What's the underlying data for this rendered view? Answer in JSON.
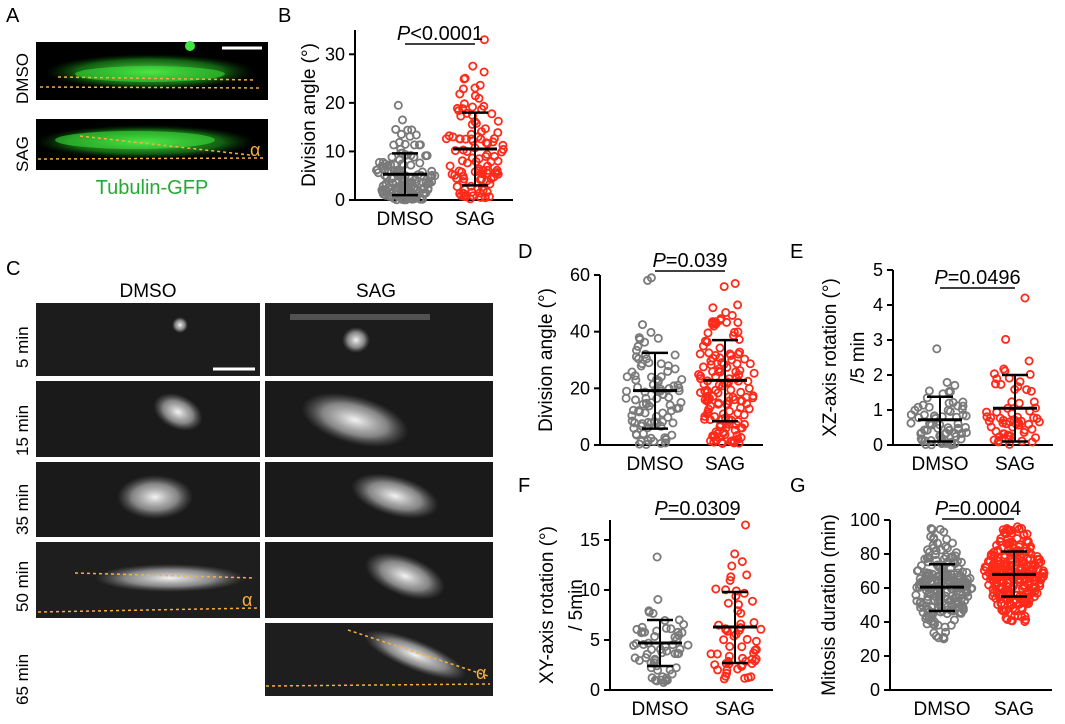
{
  "panel_letters": {
    "a": "A",
    "b": "B",
    "c": "C",
    "d": "D",
    "e": "E",
    "f": "F",
    "g": "G"
  },
  "colors": {
    "dmso": "#7a7a7a",
    "sag": "#ff2a1a",
    "micro_green": "#2fd12f",
    "dotted": "#f5b041",
    "tubulin_label": "#22aa33"
  },
  "panel_a": {
    "rows": [
      {
        "label": "DMSO",
        "has_alpha": false
      },
      {
        "label": "SAG",
        "has_alpha": true
      }
    ],
    "caption": "Tubulin-GFP",
    "alpha_symbol": "α"
  },
  "panel_c": {
    "col_labels": [
      "DMSO",
      "SAG"
    ],
    "row_labels": [
      "5 min",
      "15 min",
      "35 min",
      "50 min",
      "65 min"
    ],
    "alpha_symbol": "α"
  },
  "chart_data": [
    {
      "panel": "B",
      "type": "scatter",
      "ylabel": "Division angle (°)",
      "yticks": [
        "0",
        "10",
        "20",
        "30"
      ],
      "ylim": [
        0,
        35
      ],
      "categories": [
        "DMSO",
        "SAG"
      ],
      "pvalue_prefix": "P",
      "pvalue_rest": "<0.0001",
      "groups": [
        {
          "name": "DMSO",
          "mean": 5.3,
          "sd_low": 1.0,
          "sd_high": 9.6,
          "min": 0,
          "max": 19.5,
          "n": 140,
          "bias": 0.7
        },
        {
          "name": "SAG",
          "mean": 10.5,
          "sd_low": 3.0,
          "sd_high": 18.0,
          "min": 0,
          "max": 33,
          "n": 110,
          "bias": 0.3
        }
      ]
    },
    {
      "panel": "D",
      "type": "scatter",
      "ylabel": "Division angle (°)",
      "yticks": [
        "0",
        "20",
        "40",
        "60"
      ],
      "ylim": [
        0,
        60
      ],
      "categories": [
        "DMSO",
        "SAG"
      ],
      "pvalue_prefix": "P",
      "pvalue_rest": "=0.039",
      "groups": [
        {
          "name": "DMSO",
          "mean": 19.2,
          "sd_low": 5.8,
          "sd_high": 32.5,
          "min": 0,
          "max": 59,
          "n": 100,
          "bias": 0.4
        },
        {
          "name": "SAG",
          "mean": 22.8,
          "sd_low": 8.4,
          "sd_high": 37.0,
          "min": 0,
          "max": 57,
          "n": 150,
          "bias": 0.4
        }
      ]
    },
    {
      "panel": "E",
      "type": "scatter",
      "ylabel": "XZ-axis rotation (°)",
      "ylabel2": "/5 min",
      "yticks": [
        "0",
        "1",
        "2",
        "3",
        "4",
        "5"
      ],
      "ylim": [
        0,
        5
      ],
      "categories": [
        "DMSO",
        "SAG"
      ],
      "pvalue_prefix": "P",
      "pvalue_rest": "=0.0496",
      "groups": [
        {
          "name": "DMSO",
          "mean": 0.72,
          "sd_low": 0.1,
          "sd_high": 1.38,
          "min": 0,
          "max": 2.75,
          "n": 75,
          "bias": 0.8
        },
        {
          "name": "SAG",
          "mean": 1.05,
          "sd_low": 0.1,
          "sd_high": 2.0,
          "min": 0,
          "max": 4.2,
          "n": 65,
          "bias": 0.6
        }
      ]
    },
    {
      "panel": "F",
      "type": "scatter",
      "ylabel": "XY-axis rotation (°)",
      "ylabel2": "/ 5min",
      "yticks": [
        "0",
        "5",
        "10",
        "15"
      ],
      "ylim": [
        0,
        17
      ],
      "categories": [
        "DMSO",
        "SAG"
      ],
      "pvalue_prefix": "P",
      "pvalue_rest": "=0.0309",
      "groups": [
        {
          "name": "DMSO",
          "mean": 4.7,
          "sd_low": 2.4,
          "sd_high": 7.0,
          "min": 0.5,
          "max": 13.3,
          "n": 60,
          "bias": 0.5
        },
        {
          "name": "SAG",
          "mean": 6.3,
          "sd_low": 2.7,
          "sd_high": 9.8,
          "min": 0.5,
          "max": 16.5,
          "n": 60,
          "bias": 0.6
        }
      ]
    },
    {
      "panel": "G",
      "type": "scatter",
      "ylabel": "Mitosis duration (min)",
      "yticks": [
        "0",
        "20",
        "40",
        "60",
        "80",
        "100"
      ],
      "ylim": [
        0,
        100
      ],
      "categories": [
        "DMSO",
        "SAG"
      ],
      "pvalue_prefix": "P",
      "pvalue_rest": "=0.0004",
      "groups": [
        {
          "name": "DMSO",
          "mean": 60.5,
          "sd_low": 46.5,
          "sd_high": 74.0,
          "min": 30,
          "max": 95,
          "n": 220,
          "bias": 0
        },
        {
          "name": "SAG",
          "mean": 68.0,
          "sd_low": 55.0,
          "sd_high": 81.5,
          "min": 40,
          "max": 96,
          "n": 260,
          "bias": 0
        }
      ]
    }
  ]
}
